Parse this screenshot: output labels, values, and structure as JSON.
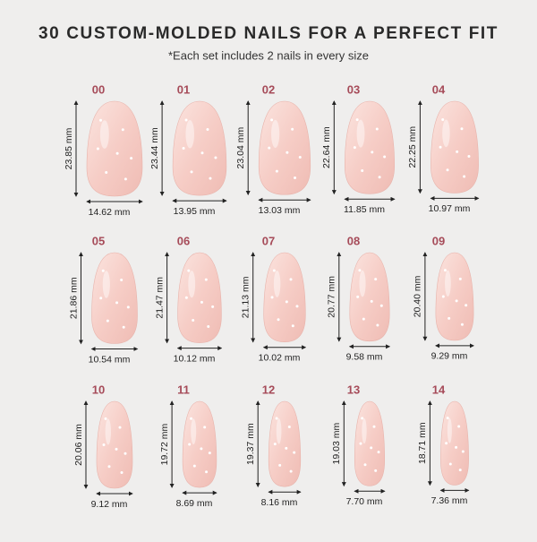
{
  "header": {
    "title": "30 CUSTOM-MOLDED NAILS FOR A PERFECT FIT",
    "subtitle": "*Each set includes 2 nails in every size"
  },
  "nails": [
    {
      "size": "00",
      "height": "23.85 mm",
      "width": "14.62 mm"
    },
    {
      "size": "01",
      "height": "23.44 mm",
      "width": "13.95 mm"
    },
    {
      "size": "02",
      "height": "23.04 mm",
      "width": "13.03 mm"
    },
    {
      "size": "03",
      "height": "22.64 mm",
      "width": "11.85 mm"
    },
    {
      "size": "04",
      "height": "22.25 mm",
      "width": "10.97 mm"
    },
    {
      "size": "05",
      "height": "21.86 mm",
      "width": "10.54 mm"
    },
    {
      "size": "06",
      "height": "21.47 mm",
      "width": "10.12 mm"
    },
    {
      "size": "07",
      "height": "21.13 mm",
      "width": "10.02 mm"
    },
    {
      "size": "08",
      "height": "20.77 mm",
      "width": "9.58 mm"
    },
    {
      "size": "09",
      "height": "20.40 mm",
      "width": "9.29 mm"
    },
    {
      "size": "10",
      "height": "20.06 mm",
      "width": "9.12 mm"
    },
    {
      "size": "11",
      "height": "19.72 mm",
      "width": "8.69 mm"
    },
    {
      "size": "12",
      "height": "19.37 mm",
      "width": "8.16 mm"
    },
    {
      "size": "13",
      "height": "19.03 mm",
      "width": "7.70 mm"
    },
    {
      "size": "14",
      "height": "18.71 mm",
      "width": "7.36 mm"
    }
  ]
}
